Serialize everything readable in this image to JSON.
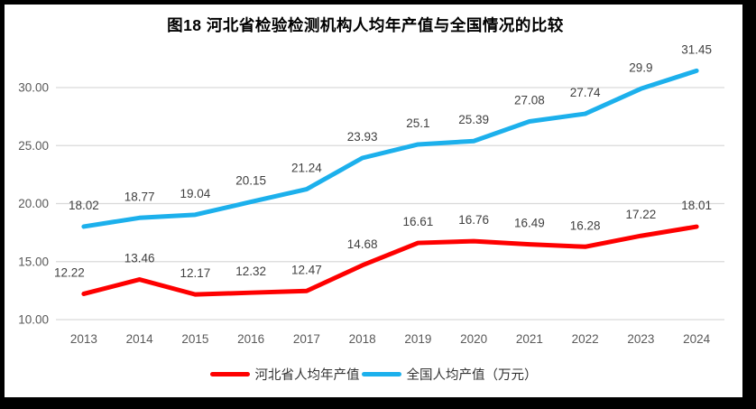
{
  "title": "图18 河北省检验检测机构人均年产值与全国情况的比较",
  "chart_data": {
    "type": "line",
    "categories": [
      "2013",
      "2014",
      "2015",
      "2016",
      "2017",
      "2018",
      "2019",
      "2020",
      "2021",
      "2022",
      "2023",
      "2024"
    ],
    "series": [
      {
        "name": "河北省人均年产值",
        "color": "#FE0000",
        "values": [
          12.22,
          13.46,
          12.17,
          12.32,
          12.47,
          14.68,
          16.61,
          16.76,
          16.49,
          16.28,
          17.22,
          18.01
        ],
        "labels": [
          "12.22",
          "13.46",
          "12.17",
          "12.32",
          "12.47",
          "14.68",
          "16.61",
          "16.76",
          "16.49",
          "16.28",
          "17.22",
          "18.01"
        ]
      },
      {
        "name": "全国人均产值（万元）",
        "color": "#1CB0EC",
        "values": [
          18.02,
          18.77,
          19.04,
          20.15,
          21.24,
          23.93,
          25.1,
          25.39,
          27.08,
          27.74,
          29.9,
          31.45
        ],
        "labels": [
          "18.02",
          "18.77",
          "19.04",
          "20.15",
          "21.24",
          "23.93",
          "25.1",
          "25.39",
          "27.08",
          "27.74",
          "29.9",
          "31.45"
        ]
      }
    ],
    "y_ticks": [
      {
        "value": 10,
        "label": "10.00"
      },
      {
        "value": 15,
        "label": "15.00"
      },
      {
        "value": 20,
        "label": "20.00"
      },
      {
        "value": 25,
        "label": "25.00"
      },
      {
        "value": 30,
        "label": "30.00"
      }
    ],
    "ylim": [
      10,
      32.6
    ],
    "xlabel": "",
    "ylabel": "",
    "grid": true,
    "legend_position": "bottom",
    "colors": {
      "grid": "#D9D9D9",
      "tick_text": "#595959",
      "data_label_text": "#404040",
      "title_text": "#000000",
      "background": "#FFFFFF",
      "frame": "#000000"
    }
  }
}
